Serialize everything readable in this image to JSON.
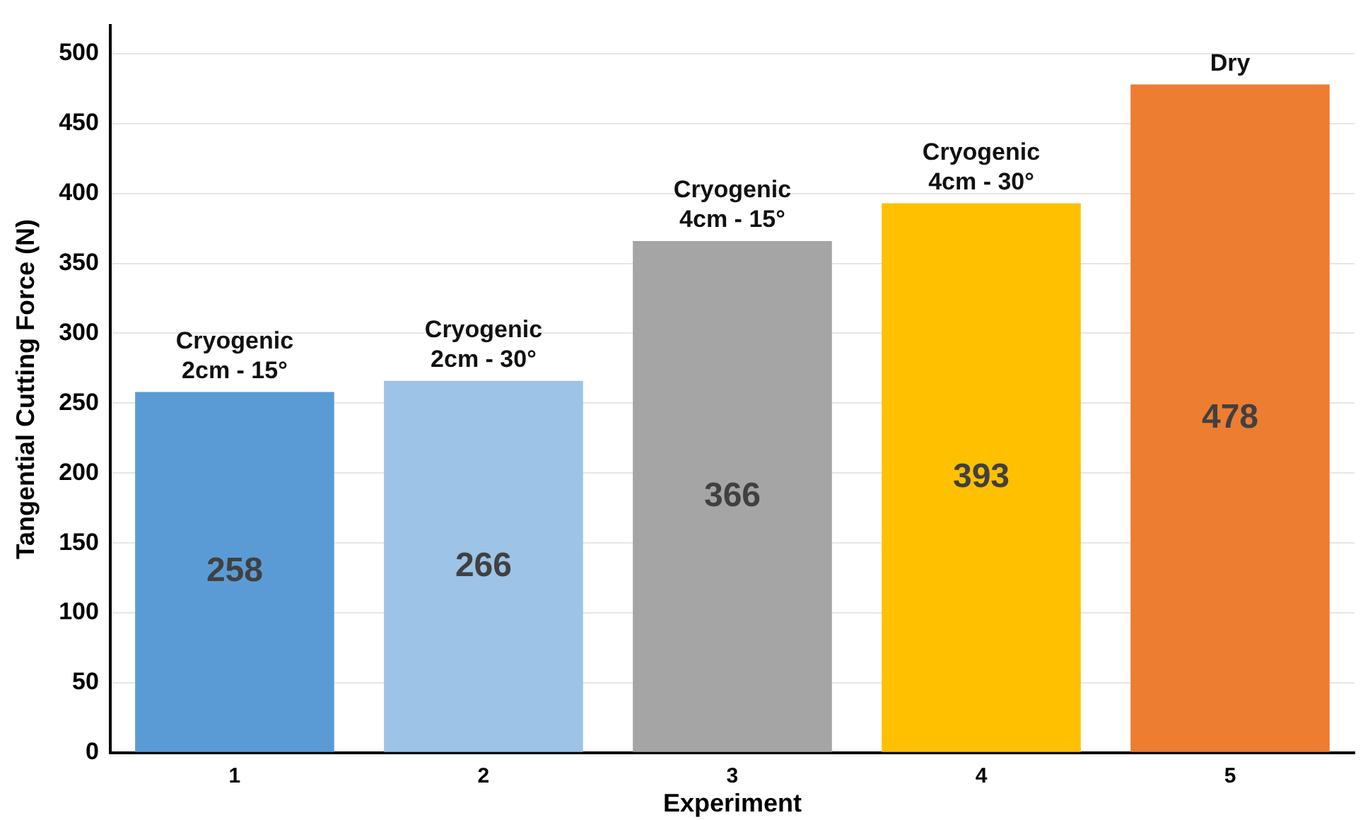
{
  "chart_data": {
    "type": "bar",
    "xlabel": "Experiment",
    "ylabel": "Tangential Cutting Force (N)",
    "categories": [
      "1",
      "2",
      "3",
      "4",
      "5"
    ],
    "values": [
      258,
      266,
      366,
      393,
      478
    ],
    "colors": [
      "#5b9bd5",
      "#9dc3e6",
      "#a5a5a5",
      "#ffc000",
      "#ed7d31"
    ],
    "ylim": [
      0,
      520
    ],
    "yticks": [
      0,
      50,
      100,
      150,
      200,
      250,
      300,
      350,
      400,
      450,
      500
    ],
    "grid": "y",
    "data_labels": true,
    "legend": false,
    "annotations": [
      {
        "text": "Cryogenic\n2cm - 15°",
        "x": "1",
        "y": 258
      },
      {
        "text": "Cryogenic\n2cm - 30°",
        "x": "2",
        "y": 266
      },
      {
        "text": "Cryogenic\n4cm - 15°",
        "x": "3",
        "y": 366
      },
      {
        "text": "Cryogenic\n4cm - 30°",
        "x": "4",
        "y": 393
      },
      {
        "text": "Dry",
        "x": "5",
        "y": 478
      }
    ]
  }
}
